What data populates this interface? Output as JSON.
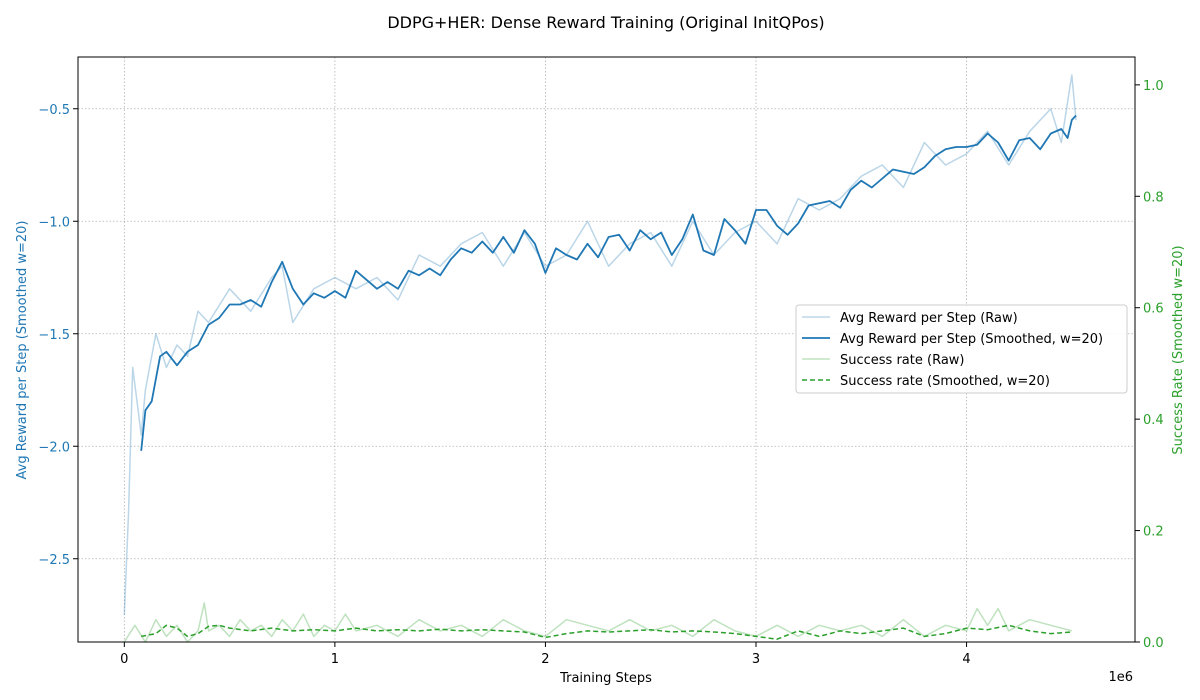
{
  "chart_data": {
    "type": "line",
    "title": "DDPG+HER: Dense Reward Training (Original InitQPos)",
    "xlabel": "Training Steps",
    "ylabel_left": "Avg Reward per Step (Smoothed w=20)",
    "ylabel_right": "Success Rate (Smoothed w=20)",
    "x_scale_label": "1e6",
    "xlim": [
      -0.22,
      4.8
    ],
    "ylim_left": [
      -2.87,
      -0.27
    ],
    "ylim_right": [
      0.0,
      1.05
    ],
    "x_ticks": [
      0,
      1,
      2,
      3,
      4
    ],
    "x_tick_labels": [
      "0",
      "1",
      "2",
      "3",
      "4"
    ],
    "y_left_ticks": [
      -2.5,
      -2.0,
      -1.5,
      -1.0,
      -0.5
    ],
    "y_left_tick_labels": [
      "−2.5",
      "−2.0",
      "−1.5",
      "−1.0",
      "−0.5"
    ],
    "y_right_ticks": [
      0.0,
      0.2,
      0.4,
      0.6,
      0.8,
      1.0
    ],
    "y_right_tick_labels": [
      "0.0",
      "0.2",
      "0.4",
      "0.6",
      "0.8",
      "1.0"
    ],
    "grid": true,
    "legend_position": "center-right",
    "colors": {
      "reward": "#1f77b4",
      "success": "#2ca02c",
      "left_axis_label": "#1f77b4",
      "right_axis_label": "#2ca02c"
    },
    "series": [
      {
        "name": "Avg Reward per Step (Raw)",
        "axis": "left",
        "style": "raw",
        "x": [
          0.0,
          0.02,
          0.04,
          0.06,
          0.08,
          0.1,
          0.15,
          0.2,
          0.25,
          0.3,
          0.35,
          0.4,
          0.5,
          0.6,
          0.7,
          0.75,
          0.8,
          0.9,
          1.0,
          1.1,
          1.2,
          1.3,
          1.4,
          1.5,
          1.6,
          1.7,
          1.8,
          1.9,
          2.0,
          2.1,
          2.2,
          2.3,
          2.4,
          2.5,
          2.6,
          2.7,
          2.8,
          2.9,
          3.0,
          3.1,
          3.2,
          3.3,
          3.4,
          3.5,
          3.6,
          3.7,
          3.8,
          3.9,
          4.0,
          4.1,
          4.2,
          4.3,
          4.4,
          4.45,
          4.5,
          4.52
        ],
        "values": [
          -2.75,
          -2.3,
          -1.65,
          -1.8,
          -1.95,
          -1.75,
          -1.5,
          -1.65,
          -1.55,
          -1.6,
          -1.4,
          -1.45,
          -1.3,
          -1.4,
          -1.25,
          -1.2,
          -1.45,
          -1.3,
          -1.25,
          -1.3,
          -1.25,
          -1.35,
          -1.15,
          -1.2,
          -1.1,
          -1.05,
          -1.2,
          -1.05,
          -1.2,
          -1.15,
          -1.0,
          -1.2,
          -1.1,
          -1.05,
          -1.2,
          -1.0,
          -1.15,
          -1.05,
          -1.0,
          -1.1,
          -0.9,
          -0.95,
          -0.9,
          -0.8,
          -0.75,
          -0.85,
          -0.65,
          -0.75,
          -0.7,
          -0.6,
          -0.75,
          -0.6,
          -0.5,
          -0.65,
          -0.35,
          -0.55
        ]
      },
      {
        "name": "Avg Reward per Step (Smoothed, w=20)",
        "axis": "left",
        "style": "smoothed",
        "x": [
          0.08,
          0.1,
          0.13,
          0.17,
          0.2,
          0.25,
          0.3,
          0.35,
          0.4,
          0.45,
          0.5,
          0.55,
          0.6,
          0.65,
          0.7,
          0.75,
          0.8,
          0.85,
          0.9,
          0.95,
          1.0,
          1.05,
          1.1,
          1.15,
          1.2,
          1.25,
          1.3,
          1.35,
          1.4,
          1.45,
          1.5,
          1.55,
          1.6,
          1.65,
          1.7,
          1.75,
          1.8,
          1.85,
          1.9,
          1.95,
          2.0,
          2.05,
          2.1,
          2.15,
          2.2,
          2.25,
          2.3,
          2.35,
          2.4,
          2.45,
          2.5,
          2.55,
          2.6,
          2.65,
          2.7,
          2.75,
          2.8,
          2.85,
          2.9,
          2.95,
          3.0,
          3.05,
          3.1,
          3.15,
          3.2,
          3.25,
          3.3,
          3.35,
          3.4,
          3.45,
          3.5,
          3.55,
          3.6,
          3.65,
          3.7,
          3.75,
          3.8,
          3.85,
          3.9,
          3.95,
          4.0,
          4.05,
          4.1,
          4.15,
          4.2,
          4.25,
          4.3,
          4.35,
          4.4,
          4.45,
          4.48,
          4.5,
          4.52
        ],
        "values": [
          -2.02,
          -1.84,
          -1.8,
          -1.6,
          -1.58,
          -1.64,
          -1.58,
          -1.55,
          -1.46,
          -1.43,
          -1.37,
          -1.37,
          -1.35,
          -1.38,
          -1.27,
          -1.18,
          -1.3,
          -1.37,
          -1.32,
          -1.34,
          -1.31,
          -1.34,
          -1.22,
          -1.26,
          -1.3,
          -1.27,
          -1.3,
          -1.22,
          -1.24,
          -1.21,
          -1.24,
          -1.17,
          -1.12,
          -1.14,
          -1.09,
          -1.14,
          -1.07,
          -1.14,
          -1.04,
          -1.1,
          -1.23,
          -1.12,
          -1.15,
          -1.17,
          -1.1,
          -1.16,
          -1.07,
          -1.06,
          -1.13,
          -1.04,
          -1.08,
          -1.05,
          -1.15,
          -1.08,
          -0.97,
          -1.13,
          -1.15,
          -0.99,
          -1.04,
          -1.1,
          -0.95,
          -0.95,
          -1.02,
          -1.06,
          -1.01,
          -0.93,
          -0.92,
          -0.91,
          -0.94,
          -0.86,
          -0.82,
          -0.85,
          -0.81,
          -0.77,
          -0.78,
          -0.79,
          -0.76,
          -0.71,
          -0.68,
          -0.67,
          -0.67,
          -0.66,
          -0.61,
          -0.65,
          -0.73,
          -0.64,
          -0.63,
          -0.68,
          -0.61,
          -0.59,
          -0.63,
          -0.55,
          -0.53
        ]
      },
      {
        "name": "Success rate (Raw)",
        "axis": "right",
        "style": "raw",
        "x": [
          0.0,
          0.05,
          0.1,
          0.15,
          0.2,
          0.25,
          0.3,
          0.35,
          0.38,
          0.4,
          0.45,
          0.5,
          0.55,
          0.6,
          0.65,
          0.7,
          0.75,
          0.8,
          0.85,
          0.9,
          0.95,
          1.0,
          1.05,
          1.1,
          1.2,
          1.3,
          1.4,
          1.5,
          1.6,
          1.7,
          1.8,
          1.9,
          2.0,
          2.1,
          2.2,
          2.3,
          2.4,
          2.5,
          2.6,
          2.7,
          2.8,
          2.9,
          3.0,
          3.1,
          3.2,
          3.3,
          3.4,
          3.5,
          3.6,
          3.7,
          3.8,
          3.9,
          4.0,
          4.05,
          4.1,
          4.15,
          4.2,
          4.3,
          4.4,
          4.5
        ],
        "values": [
          0.0,
          0.03,
          0.0,
          0.04,
          0.01,
          0.03,
          0.0,
          0.02,
          0.07,
          0.02,
          0.03,
          0.01,
          0.04,
          0.02,
          0.03,
          0.01,
          0.04,
          0.02,
          0.05,
          0.01,
          0.03,
          0.02,
          0.05,
          0.02,
          0.03,
          0.01,
          0.04,
          0.02,
          0.03,
          0.01,
          0.04,
          0.02,
          0.01,
          0.04,
          0.03,
          0.02,
          0.04,
          0.02,
          0.03,
          0.01,
          0.04,
          0.02,
          0.01,
          0.03,
          0.01,
          0.03,
          0.02,
          0.03,
          0.01,
          0.04,
          0.01,
          0.03,
          0.02,
          0.06,
          0.03,
          0.06,
          0.02,
          0.04,
          0.03,
          0.02
        ]
      },
      {
        "name": "Success rate (Smoothed, w=20)",
        "axis": "right",
        "style": "dashed",
        "x": [
          0.08,
          0.15,
          0.2,
          0.25,
          0.3,
          0.35,
          0.4,
          0.45,
          0.5,
          0.6,
          0.7,
          0.8,
          0.9,
          1.0,
          1.1,
          1.2,
          1.3,
          1.4,
          1.5,
          1.6,
          1.7,
          1.8,
          1.9,
          2.0,
          2.1,
          2.2,
          2.3,
          2.4,
          2.5,
          2.6,
          2.7,
          2.8,
          2.9,
          3.0,
          3.1,
          3.2,
          3.3,
          3.4,
          3.5,
          3.6,
          3.7,
          3.8,
          3.9,
          4.0,
          4.1,
          4.2,
          4.3,
          4.4,
          4.5
        ],
        "values": [
          0.01,
          0.015,
          0.03,
          0.025,
          0.01,
          0.015,
          0.028,
          0.03,
          0.025,
          0.02,
          0.025,
          0.02,
          0.022,
          0.02,
          0.025,
          0.02,
          0.022,
          0.02,
          0.023,
          0.02,
          0.022,
          0.02,
          0.018,
          0.008,
          0.015,
          0.02,
          0.018,
          0.02,
          0.022,
          0.018,
          0.02,
          0.018,
          0.015,
          0.01,
          0.005,
          0.02,
          0.01,
          0.02,
          0.015,
          0.02,
          0.025,
          0.01,
          0.015,
          0.025,
          0.022,
          0.03,
          0.02,
          0.015,
          0.018
        ]
      }
    ]
  }
}
